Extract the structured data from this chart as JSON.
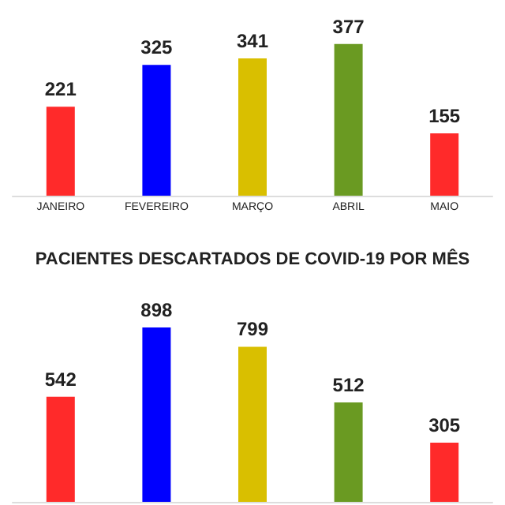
{
  "chart_data": [
    {
      "type": "bar",
      "categories": [
        "JANEIRO",
        "FEVEREIRO",
        "MARÇO",
        "ABRIL",
        "MAIO"
      ],
      "values": [
        221,
        325,
        341,
        377,
        155
      ],
      "colors": [
        "#ff2a2a",
        "#0000ff",
        "#d9bf00",
        "#6a9a22",
        "#ff2a2a"
      ],
      "data_labels": true,
      "tick_labels": "x",
      "grid": false
    },
    {
      "type": "bar",
      "title": "PACIENTES DESCARTADOS DE COVID-19 POR MÊS",
      "categories": [
        null,
        null,
        null,
        null,
        null
      ],
      "values": [
        542,
        898,
        799,
        512,
        305
      ],
      "colors": [
        "#ff2a2a",
        "#0000ff",
        "#d9bf00",
        "#6a9a22",
        "#ff2a2a"
      ],
      "data_labels": true,
      "tick_labels": false,
      "grid": false
    }
  ]
}
